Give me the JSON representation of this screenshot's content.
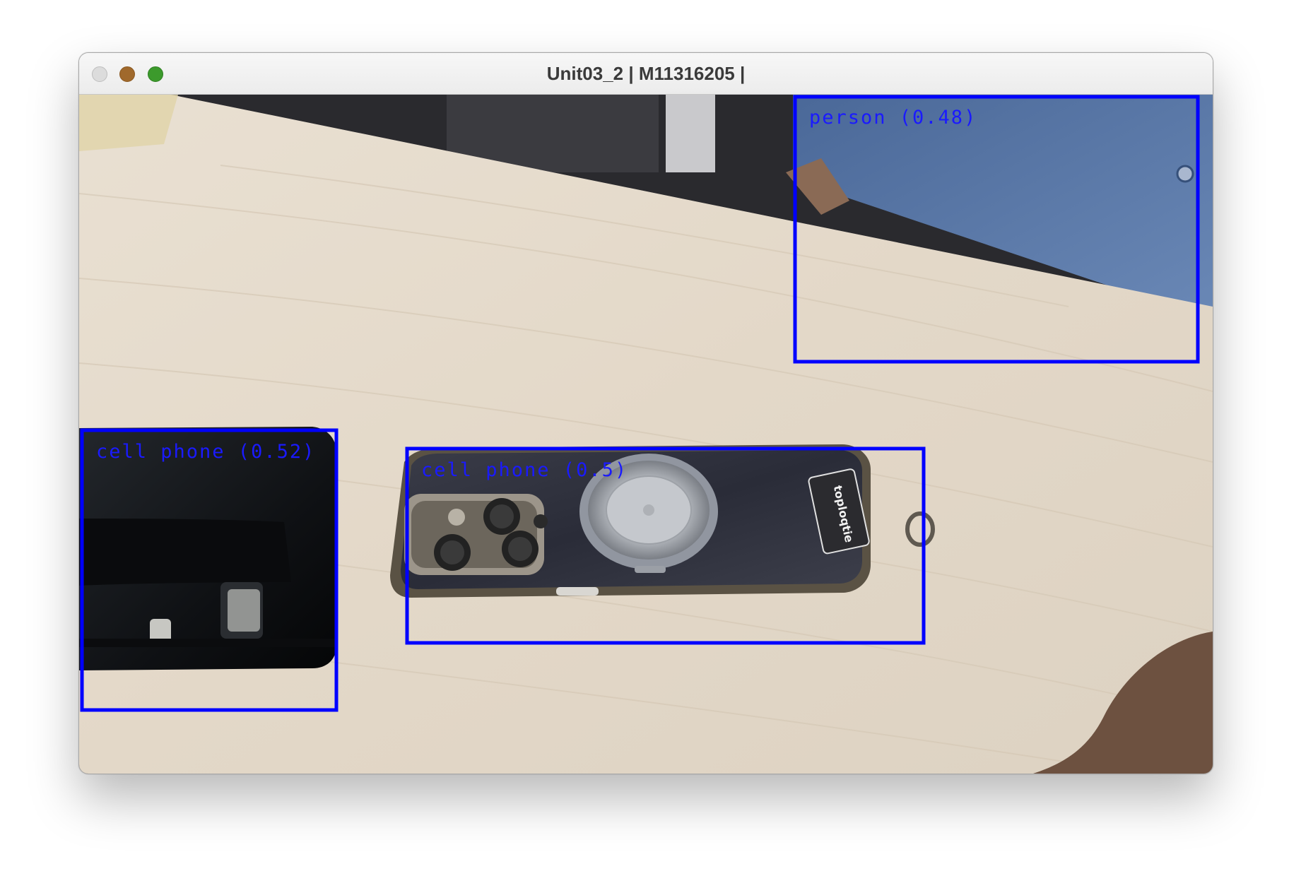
{
  "window": {
    "title": "Unit03_2 | M11316205 |",
    "traffic_lights": [
      "close",
      "minimize",
      "maximize"
    ]
  },
  "detections": [
    {
      "label": "person (0.48)",
      "class": "person",
      "confidence": 0.48
    },
    {
      "label": "cell phone (0.52)",
      "class": "cell phone",
      "confidence": 0.52
    },
    {
      "label": "cell phone (0.5)",
      "class": "cell phone",
      "confidence": 0.5
    }
  ],
  "scene": {
    "phone_case_brand": "toploqtie"
  },
  "colors": {
    "box": "#0000ff",
    "desk": "#e4d9c9",
    "shirt": "#5574a6"
  }
}
